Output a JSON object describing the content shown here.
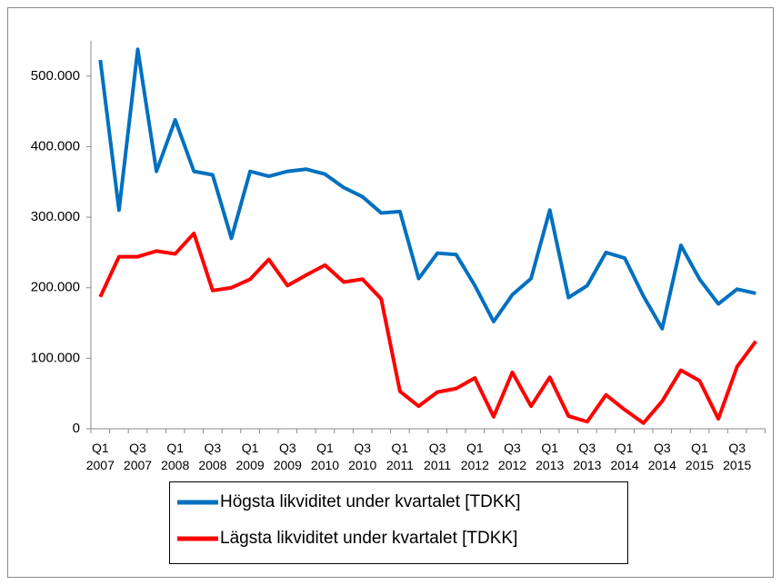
{
  "chart_data": {
    "type": "line",
    "categories": [
      "Q1 2007",
      null,
      "Q3 2007",
      null,
      "Q1 2008",
      null,
      "Q3 2008",
      null,
      "Q1 2009",
      null,
      "Q3 2009",
      null,
      "Q1 2010",
      null,
      "Q3 2010",
      null,
      "Q1 2011",
      null,
      "Q3 2011",
      null,
      "Q1 2012",
      null,
      "Q3 2012",
      null,
      "Q1 2013",
      null,
      "Q3 2013",
      null,
      "Q1 2014",
      null,
      "Q3 2014",
      null,
      "Q1 2015",
      null,
      "Q3 2015",
      null
    ],
    "series": [
      {
        "name": "Högsta likviditet under kvartalet [TDKK]",
        "color": "#0070c0",
        "values": [
          523000,
          310000,
          538000,
          365000,
          438000,
          365000,
          360000,
          270000,
          365000,
          358000,
          365000,
          368000,
          361000,
          342000,
          329000,
          306000,
          308000,
          213000,
          249000,
          247000,
          203000,
          152000,
          190000,
          213000,
          310000,
          186000,
          203000,
          250000,
          242000,
          188000,
          142000,
          260000,
          212000,
          177000,
          198000,
          192000
        ]
      },
      {
        "name": "Lägsta likviditet under kvartalet [TDKK]",
        "color": "#ff0000",
        "values": [
          187000,
          244000,
          244000,
          252000,
          248000,
          277000,
          196000,
          200000,
          212000,
          240000,
          203000,
          218000,
          232000,
          208000,
          212000,
          184000,
          53000,
          32000,
          52000,
          57000,
          72000,
          17000,
          80000,
          32000,
          73000,
          18000,
          10000,
          48000,
          27000,
          8000,
          39000,
          83000,
          68000,
          14000,
          88000,
          124000
        ]
      }
    ],
    "ylim": [
      0,
      550000
    ],
    "yticks": [
      0,
      {
        "value": 100000,
        "label": "100.000"
      },
      {
        "value": 200000,
        "label": "200.000"
      },
      {
        "value": 300000,
        "label": "300.000"
      },
      {
        "value": 400000,
        "label": "400.000"
      },
      {
        "value": 500000,
        "label": "500.000"
      }
    ],
    "legend": "bottom"
  }
}
